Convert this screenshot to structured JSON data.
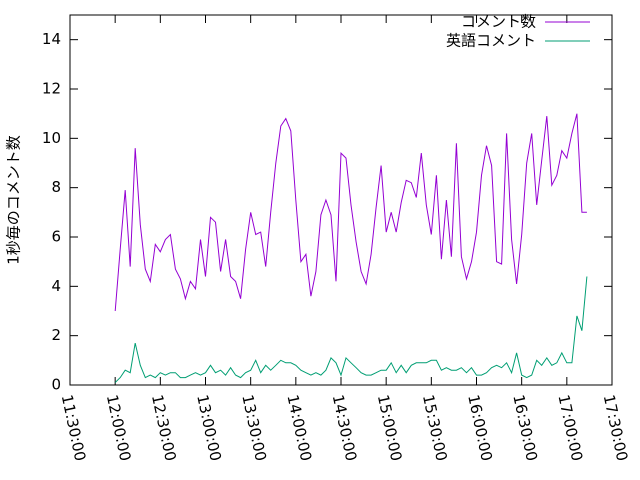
{
  "chart_data": {
    "type": "line",
    "ylabel": "1秒毎のコメント数",
    "x": [
      "12:00:00",
      "12:03:20",
      "12:06:40",
      "12:10:00",
      "12:13:20",
      "12:16:40",
      "12:20:00",
      "12:23:20",
      "12:26:40",
      "12:30:00",
      "12:33:20",
      "12:36:40",
      "12:40:00",
      "12:43:20",
      "12:46:40",
      "12:50:00",
      "12:53:20",
      "12:56:40",
      "13:00:00",
      "13:03:20",
      "13:06:40",
      "13:10:00",
      "13:13:20",
      "13:16:40",
      "13:20:00",
      "13:23:20",
      "13:26:40",
      "13:30:00",
      "13:33:20",
      "13:36:40",
      "13:40:00",
      "13:43:20",
      "13:46:40",
      "13:50:00",
      "13:53:20",
      "13:56:40",
      "14:00:00",
      "14:03:20",
      "14:06:40",
      "14:10:00",
      "14:13:20",
      "14:16:40",
      "14:20:00",
      "14:23:20",
      "14:26:40",
      "14:30:00",
      "14:33:20",
      "14:36:40",
      "14:40:00",
      "14:43:20",
      "14:46:40",
      "14:50:00",
      "14:53:20",
      "14:56:40",
      "15:00:00",
      "15:03:20",
      "15:06:40",
      "15:10:00",
      "15:13:20",
      "15:16:40",
      "15:20:00",
      "15:23:20",
      "15:26:40",
      "15:30:00",
      "15:33:20",
      "15:36:40",
      "15:40:00",
      "15:43:20",
      "15:46:40",
      "15:50:00",
      "15:53:20",
      "15:56:40",
      "16:00:00",
      "16:03:20",
      "16:06:40",
      "16:10:00",
      "16:13:20",
      "16:16:40",
      "16:20:00",
      "16:23:20",
      "16:26:40",
      "16:30:00",
      "16:33:20",
      "16:36:40",
      "16:40:00",
      "16:43:20",
      "16:46:40",
      "16:50:00",
      "16:53:20",
      "16:56:40",
      "17:00:00",
      "17:03:20",
      "17:06:40",
      "17:10:00",
      "17:13:20"
    ],
    "series": [
      {
        "name": "コメント数",
        "color": "#9400d3",
        "values": [
          3.0,
          5.5,
          7.9,
          4.8,
          9.6,
          6.5,
          4.7,
          4.2,
          5.7,
          5.4,
          5.9,
          6.1,
          4.7,
          4.3,
          3.5,
          4.2,
          3.9,
          5.9,
          4.4,
          6.8,
          6.6,
          4.6,
          5.9,
          4.4,
          4.2,
          3.5,
          5.5,
          7.0,
          6.1,
          6.2,
          4.8,
          7.0,
          9.0,
          10.5,
          10.8,
          10.3,
          7.5,
          5.0,
          5.3,
          3.6,
          4.6,
          6.9,
          7.5,
          6.9,
          4.2,
          9.4,
          9.2,
          7.3,
          5.8,
          4.6,
          4.1,
          5.3,
          7.2,
          8.9,
          6.2,
          7.0,
          6.2,
          7.4,
          8.3,
          8.2,
          7.6,
          9.4,
          7.3,
          6.1,
          8.5,
          5.1,
          7.5,
          5.2,
          9.8,
          5.2,
          4.3,
          5.0,
          6.2,
          8.5,
          9.7,
          8.9,
          5.0,
          4.9,
          10.2,
          5.9,
          4.1,
          6.1,
          9.0,
          10.2,
          7.3,
          9.1,
          10.9,
          8.1,
          8.5,
          9.5,
          9.2,
          10.2,
          11.0,
          7.0,
          7.0
        ]
      },
      {
        "name": "英語コメント",
        "color": "#009e73",
        "values": [
          0.1,
          0.3,
          0.6,
          0.5,
          1.7,
          0.8,
          0.3,
          0.4,
          0.3,
          0.5,
          0.4,
          0.5,
          0.5,
          0.3,
          0.3,
          0.4,
          0.5,
          0.4,
          0.5,
          0.8,
          0.5,
          0.6,
          0.4,
          0.7,
          0.4,
          0.3,
          0.5,
          0.6,
          1.0,
          0.5,
          0.8,
          0.6,
          0.8,
          1.0,
          0.9,
          0.9,
          0.8,
          0.6,
          0.5,
          0.4,
          0.5,
          0.4,
          0.6,
          1.1,
          0.9,
          0.4,
          1.1,
          0.9,
          0.7,
          0.5,
          0.4,
          0.4,
          0.5,
          0.6,
          0.6,
          0.9,
          0.5,
          0.8,
          0.5,
          0.8,
          0.9,
          0.9,
          0.9,
          1.0,
          1.0,
          0.6,
          0.7,
          0.6,
          0.6,
          0.7,
          0.5,
          0.7,
          0.4,
          0.4,
          0.5,
          0.7,
          0.8,
          0.7,
          0.9,
          0.5,
          1.3,
          0.4,
          0.3,
          0.4,
          1.0,
          0.8,
          1.1,
          0.8,
          0.9,
          1.3,
          0.9,
          0.9,
          2.8,
          2.2,
          4.4
        ]
      }
    ],
    "xlim": [
      "11:30:00",
      "17:30:00"
    ],
    "xticks": [
      "11:30:00",
      "12:00:00",
      "12:30:00",
      "13:00:00",
      "13:30:00",
      "14:00:00",
      "14:30:00",
      "15:00:00",
      "15:30:00",
      "16:00:00",
      "16:30:00",
      "17:00:00",
      "17:30:00"
    ],
    "ylim": [
      0,
      15
    ],
    "yticks": [
      0,
      2,
      4,
      6,
      8,
      10,
      12,
      14
    ],
    "grid": false,
    "legend": "top-right"
  }
}
